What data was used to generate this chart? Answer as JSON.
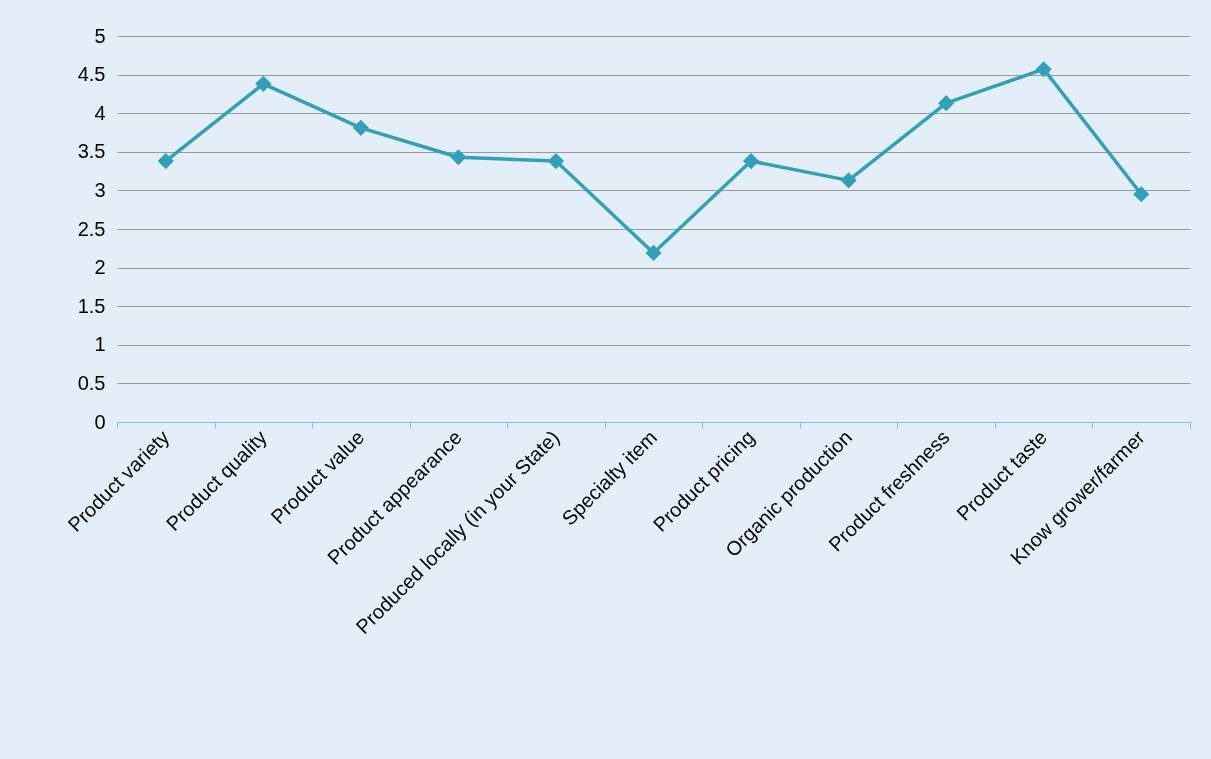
{
  "chart_data": {
    "type": "line",
    "categories": [
      "Product variety",
      "Product quality",
      "Product value",
      "Product appearance",
      "Produced locally (in your State)",
      "Specialty item",
      "Product pricing",
      "Organic production",
      "Product freshness",
      "Product taste",
      "Know grower/farmer"
    ],
    "series": [
      {
        "color": "#31a0b9",
        "values": [
          3.38,
          4.38,
          3.81,
          3.43,
          3.38,
          2.19,
          3.38,
          3.13,
          4.13,
          4.57,
          2.95
        ]
      }
    ],
    "ylim": [
      0,
      5
    ],
    "yticks": [
      0,
      0.5,
      1,
      1.5,
      2,
      2.5,
      3,
      3.5,
      4,
      4.5,
      5
    ],
    "grid": "y",
    "marker": "diamond",
    "line_style": "solid"
  }
}
